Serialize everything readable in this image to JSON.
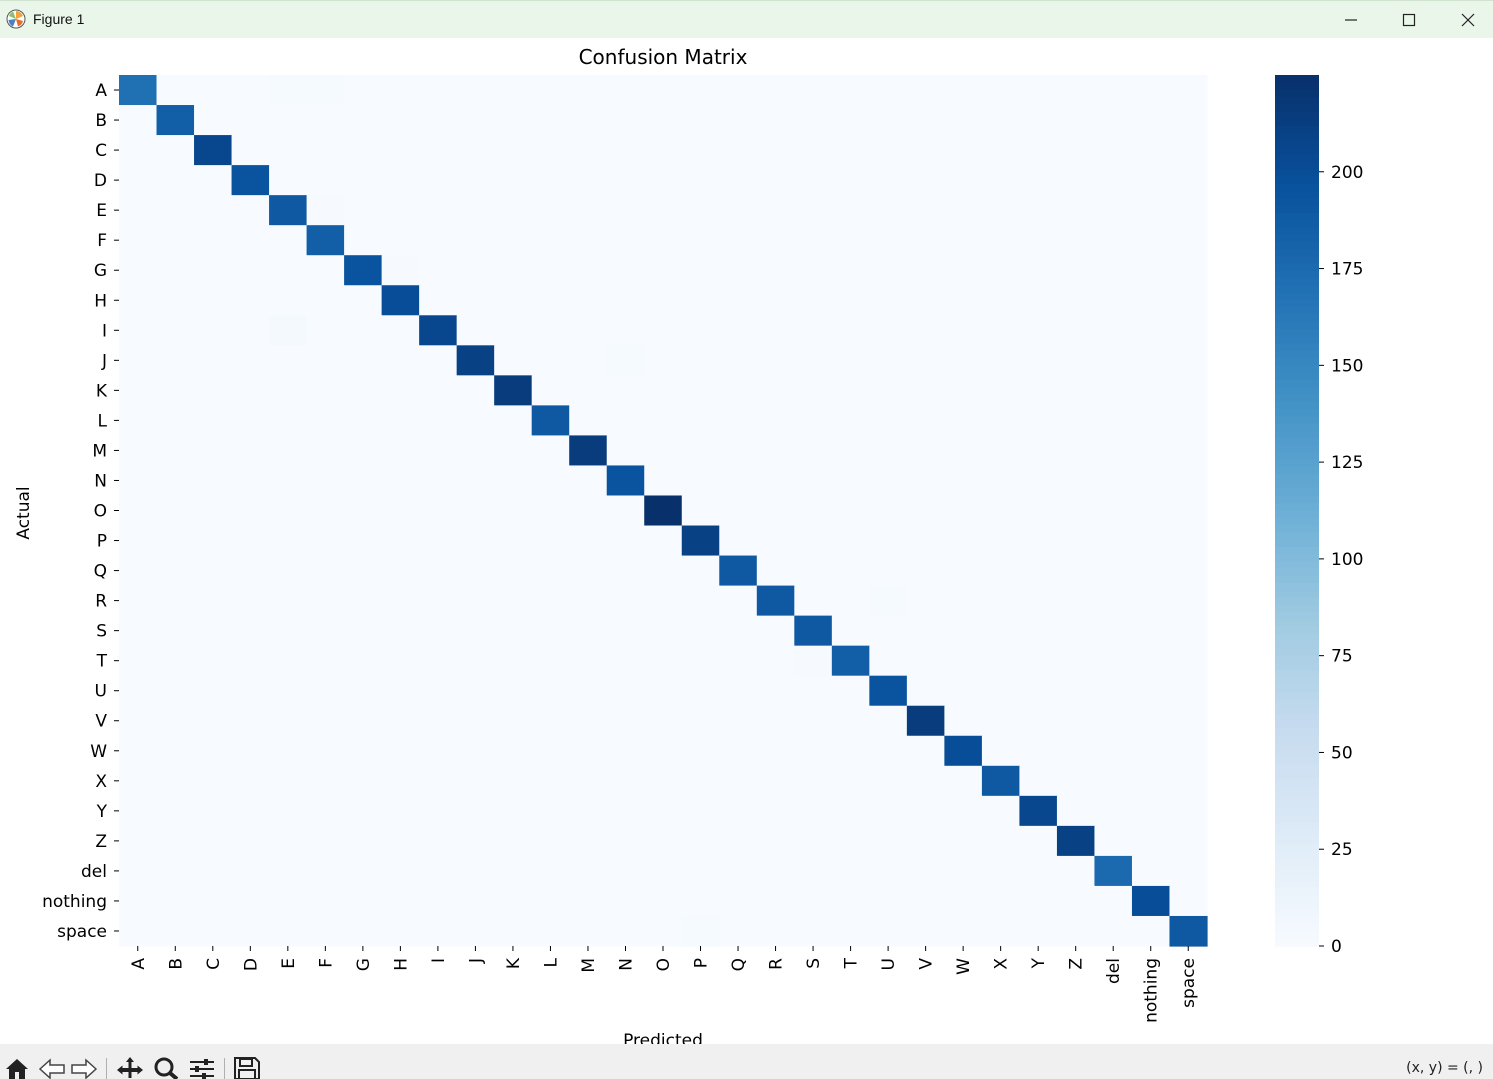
{
  "window": {
    "title": "Figure 1",
    "minimize_icon": "minimize-icon",
    "maximize_icon": "maximize-icon",
    "close_icon": "close-icon"
  },
  "toolbar": {
    "buttons": [
      "home-icon",
      "back-arrow-icon",
      "forward-arrow-icon",
      "pan-icon",
      "zoom-icon",
      "configure-subplots-icon",
      "save-icon"
    ],
    "coords_text": "(x, y) = (, )"
  },
  "chart_data": {
    "type": "heatmap",
    "title": "Confusion Matrix",
    "xlabel": "Predicted",
    "ylabel": "Actual",
    "colormap": "Blues",
    "row_labels": [
      "A",
      "B",
      "C",
      "D",
      "E",
      "F",
      "G",
      "H",
      "I",
      "J",
      "K",
      "L",
      "M",
      "N",
      "O",
      "P",
      "Q",
      "R",
      "S",
      "T",
      "U",
      "V",
      "W",
      "X",
      "Y",
      "Z",
      "del",
      "nothing",
      "space"
    ],
    "col_labels": [
      "A",
      "B",
      "C",
      "D",
      "E",
      "F",
      "G",
      "H",
      "I",
      "J",
      "K",
      "L",
      "M",
      "N",
      "O",
      "P",
      "Q",
      "R",
      "S",
      "T",
      "U",
      "V",
      "W",
      "X",
      "Y",
      "Z",
      "del",
      "nothing",
      "space"
    ],
    "diagonal_values": [
      170,
      185,
      205,
      195,
      190,
      185,
      195,
      200,
      205,
      210,
      215,
      190,
      215,
      195,
      225,
      210,
      190,
      190,
      190,
      185,
      195,
      215,
      200,
      190,
      205,
      210,
      175,
      200,
      190
    ],
    "off_diagonal": [
      {
        "row": 0,
        "col": 4,
        "value": 2
      },
      {
        "row": 0,
        "col": 5,
        "value": 2
      },
      {
        "row": 4,
        "col": 5,
        "value": 1
      },
      {
        "row": 6,
        "col": 7,
        "value": 1
      },
      {
        "row": 8,
        "col": 4,
        "value": 3
      },
      {
        "row": 9,
        "col": 13,
        "value": 2
      },
      {
        "row": 17,
        "col": 20,
        "value": 2
      },
      {
        "row": 19,
        "col": 18,
        "value": 1
      },
      {
        "row": 28,
        "col": 15,
        "value": 2
      }
    ],
    "default_value": 0,
    "colorbar": {
      "vmin": 0,
      "vmax": 225,
      "ticks": [
        0,
        25,
        50,
        75,
        100,
        125,
        150,
        175,
        200
      ]
    },
    "grid": false
  }
}
